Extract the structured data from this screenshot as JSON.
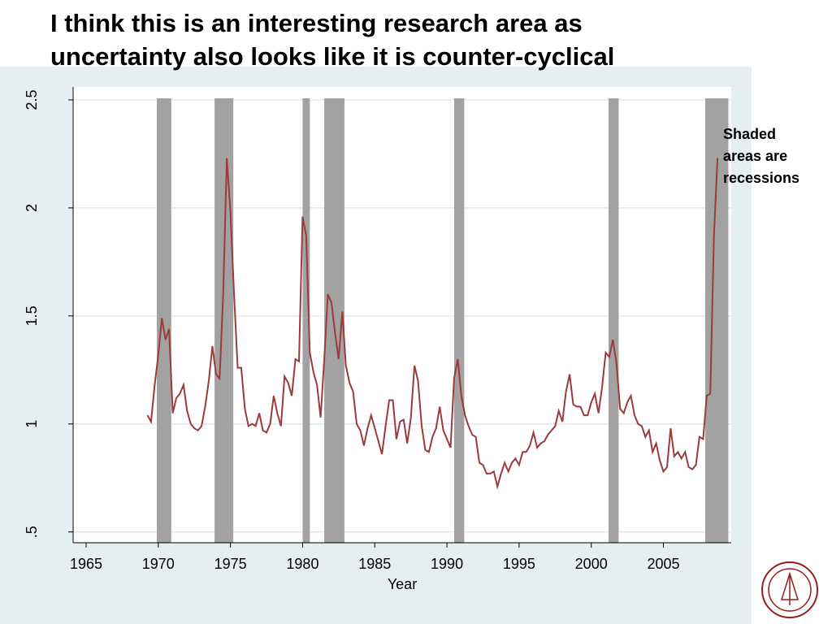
{
  "chart_data": {
    "type": "line",
    "title": [
      "I think this is an interesting research area as",
      "uncertainty also looks like it is counter-cyclical"
    ],
    "annotation": [
      "Shaded",
      "areas are",
      "recessions"
    ],
    "xlabel": "Year",
    "color": "#9b3a3f",
    "recession_color": "#a2a2a2",
    "recessions": [
      [
        1969.9,
        1970.9
      ],
      [
        1973.9,
        1975.2
      ],
      [
        1980.0,
        1980.5
      ],
      [
        1981.5,
        1982.9
      ],
      [
        1990.5,
        1991.2
      ],
      [
        2001.2,
        2001.9
      ],
      [
        2007.9,
        2009.5
      ]
    ],
    "xlim": [
      1964.1,
      2009.7
    ],
    "ylim": [
      0.45,
      2.56
    ],
    "xticks": [
      1965,
      1970,
      1975,
      1980,
      1985,
      1990,
      1995,
      2000,
      2005
    ],
    "yticks": [
      {
        "value": 0.5,
        "label": ".5"
      },
      1,
      1.5,
      2,
      2.5
    ],
    "grid": true,
    "x": [
      1969.25,
      1969.5,
      1969.75,
      1970,
      1970.25,
      1970.5,
      1970.75,
      1971,
      1971.25,
      1971.5,
      1971.75,
      1972,
      1972.25,
      1972.5,
      1972.75,
      1973,
      1973.25,
      1973.5,
      1973.75,
      1974,
      1974.25,
      1974.5,
      1974.75,
      1975,
      1975.25,
      1975.5,
      1975.75,
      1976,
      1976.25,
      1976.5,
      1976.75,
      1977,
      1977.25,
      1977.5,
      1977.75,
      1978,
      1978.25,
      1978.5,
      1978.75,
      1979,
      1979.25,
      1979.5,
      1979.75,
      1980,
      1980.25,
      1980.5,
      1980.75,
      1981,
      1981.25,
      1981.5,
      1981.75,
      1982,
      1982.25,
      1982.5,
      1982.75,
      1983,
      1983.25,
      1983.5,
      1983.75,
      1984,
      1984.25,
      1984.5,
      1984.75,
      1985,
      1985.25,
      1985.5,
      1985.75,
      1986,
      1986.25,
      1986.5,
      1986.75,
      1987,
      1987.25,
      1987.5,
      1987.75,
      1988,
      1988.25,
      1988.5,
      1988.75,
      1989,
      1989.25,
      1989.5,
      1989.75,
      1990,
      1990.25,
      1990.5,
      1990.75,
      1991,
      1991.25,
      1991.5,
      1991.75,
      1992,
      1992.25,
      1992.5,
      1992.75,
      1993,
      1993.25,
      1993.5,
      1993.75,
      1994,
      1994.25,
      1994.5,
      1994.75,
      1995,
      1995.25,
      1995.5,
      1995.75,
      1996,
      1996.25,
      1996.5,
      1996.75,
      1997,
      1997.25,
      1997.5,
      1997.75,
      1998,
      1998.25,
      1998.5,
      1998.75,
      1999,
      1999.25,
      1999.5,
      1999.75,
      2000,
      2000.25,
      2000.5,
      2000.75,
      2001,
      2001.25,
      2001.5,
      2001.75,
      2002,
      2002.25,
      2002.5,
      2002.75,
      2003,
      2003.25,
      2003.5,
      2003.75,
      2004,
      2004.25,
      2004.5,
      2004.75,
      2005,
      2005.25,
      2005.5,
      2005.75,
      2006,
      2006.25,
      2006.5,
      2006.75,
      2007,
      2007.25,
      2007.5,
      2007.75,
      2008,
      2008.25,
      2008.5,
      2008.75
    ],
    "values": [
      1.04,
      1.01,
      1.18,
      1.32,
      1.49,
      1.39,
      1.44,
      1.05,
      1.12,
      1.14,
      1.18,
      1.06,
      1.0,
      0.98,
      0.97,
      0.99,
      1.08,
      1.2,
      1.36,
      1.23,
      1.21,
      1.6,
      2.23,
      1.98,
      1.6,
      1.26,
      1.26,
      1.07,
      0.99,
      1.0,
      0.99,
      1.05,
      0.97,
      0.96,
      1.0,
      1.13,
      1.05,
      0.99,
      1.22,
      1.19,
      1.13,
      1.3,
      1.29,
      1.96,
      1.87,
      1.33,
      1.24,
      1.18,
      1.03,
      1.3,
      1.6,
      1.56,
      1.42,
      1.3,
      1.52,
      1.27,
      1.19,
      1.15,
      1.0,
      0.97,
      0.9,
      0.98,
      1.04,
      0.98,
      0.92,
      0.86,
      0.99,
      1.11,
      1.11,
      0.93,
      1.01,
      1.02,
      0.91,
      1.03,
      1.27,
      1.2,
      0.99,
      0.88,
      0.87,
      0.94,
      0.98,
      1.08,
      0.97,
      0.93,
      0.89,
      1.21,
      1.3,
      1.13,
      1.04,
      0.99,
      0.95,
      0.94,
      0.82,
      0.81,
      0.77,
      0.77,
      0.78,
      0.71,
      0.77,
      0.82,
      0.78,
      0.82,
      0.84,
      0.81,
      0.87,
      0.87,
      0.9,
      0.96,
      0.89,
      0.91,
      0.92,
      0.95,
      0.97,
      0.99,
      1.06,
      1.01,
      1.15,
      1.23,
      1.09,
      1.08,
      1.08,
      1.04,
      1.04,
      1.1,
      1.14,
      1.05,
      1.17,
      1.33,
      1.31,
      1.39,
      1.28,
      1.07,
      1.05,
      1.1,
      1.13,
      1.04,
      1.0,
      0.99,
      0.94,
      0.97,
      0.87,
      0.91,
      0.83,
      0.78,
      0.8,
      0.98,
      0.85,
      0.87,
      0.84,
      0.87,
      0.8,
      0.79,
      0.81,
      0.94,
      0.93,
      1.13,
      1.14,
      1.87,
      2.23
    ]
  }
}
